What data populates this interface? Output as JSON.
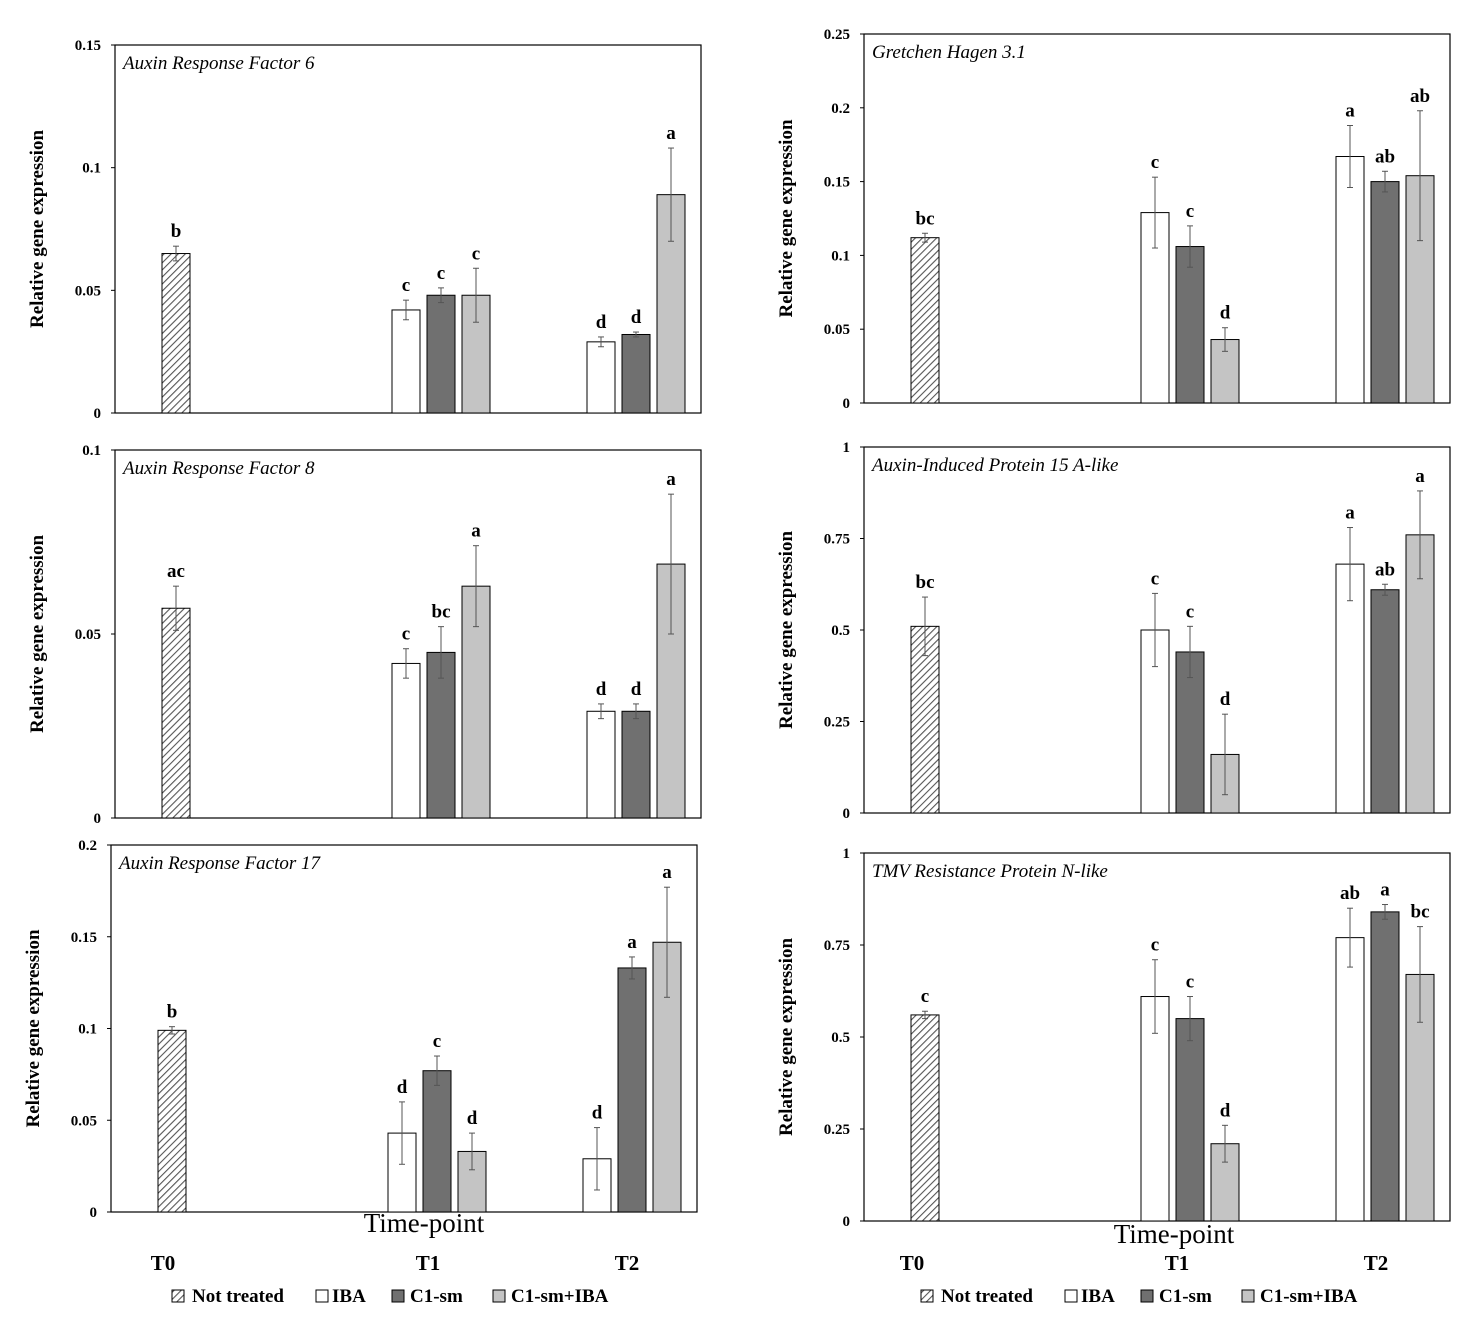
{
  "chart_data": [
    {
      "type": "bar",
      "title": "Auxin Response Factor 6",
      "ylabel": "Relative gene expression",
      "ylim": [
        0,
        0.15
      ],
      "yticks": [
        "0",
        "0.05",
        "0.1",
        "0.15"
      ],
      "categories": [
        "T0",
        "T1",
        "T2"
      ],
      "series": [
        {
          "name": "Not treated",
          "values": [
            0.065,
            null,
            null
          ],
          "errors": [
            0.003,
            null,
            null
          ],
          "letters": [
            "b",
            null,
            null
          ]
        },
        {
          "name": "IBA",
          "values": [
            null,
            0.042,
            0.029
          ],
          "errors": [
            null,
            0.004,
            0.002
          ],
          "letters": [
            null,
            "c",
            "d"
          ]
        },
        {
          "name": "C1-sm",
          "values": [
            null,
            0.048,
            0.032
          ],
          "errors": [
            null,
            0.003,
            0.001
          ],
          "letters": [
            null,
            "c",
            "d"
          ]
        },
        {
          "name": "C1-sm+IBA",
          "values": [
            null,
            0.048,
            0.089
          ],
          "errors": [
            null,
            0.011,
            0.019
          ],
          "letters": [
            null,
            "c",
            "a"
          ]
        }
      ]
    },
    {
      "type": "bar",
      "title": "Auxin Response Factor 8",
      "ylabel": "Relative gene expression",
      "ylim": [
        0,
        0.1
      ],
      "yticks": [
        "0",
        "0.05",
        "0.1"
      ],
      "categories": [
        "T0",
        "T1",
        "T2"
      ],
      "series": [
        {
          "name": "Not treated",
          "values": [
            0.057,
            null,
            null
          ],
          "errors": [
            0.006,
            null,
            null
          ],
          "letters": [
            "ac",
            null,
            null
          ]
        },
        {
          "name": "IBA",
          "values": [
            null,
            0.042,
            0.029
          ],
          "errors": [
            null,
            0.004,
            0.002
          ],
          "letters": [
            null,
            "c",
            "d"
          ]
        },
        {
          "name": "C1-sm",
          "values": [
            null,
            0.045,
            0.029
          ],
          "errors": [
            null,
            0.007,
            0.002
          ],
          "letters": [
            null,
            "bc",
            "d"
          ]
        },
        {
          "name": "C1-sm+IBA",
          "values": [
            null,
            0.063,
            0.069
          ],
          "errors": [
            null,
            0.011,
            0.019
          ],
          "letters": [
            null,
            "a",
            "a"
          ]
        }
      ]
    },
    {
      "type": "bar",
      "title": "Auxin Response Factor 17",
      "ylabel": "Relative gene expression",
      "ylim": [
        0,
        0.2
      ],
      "yticks": [
        "0",
        "0.05",
        "0.1",
        "0.15",
        "0.2"
      ],
      "categories": [
        "T0",
        "T1",
        "T2"
      ],
      "series": [
        {
          "name": "Not treated",
          "values": [
            0.099,
            null,
            null
          ],
          "errors": [
            0.002,
            null,
            null
          ],
          "letters": [
            "b",
            null,
            null
          ]
        },
        {
          "name": "IBA",
          "values": [
            null,
            0.043,
            0.029
          ],
          "errors": [
            null,
            0.017,
            0.017
          ],
          "letters": [
            null,
            "d",
            "d"
          ]
        },
        {
          "name": "C1-sm",
          "values": [
            null,
            0.077,
            0.133
          ],
          "errors": [
            null,
            0.008,
            0.006
          ],
          "letters": [
            null,
            "c",
            "a"
          ]
        },
        {
          "name": "C1-sm+IBA",
          "values": [
            null,
            0.033,
            0.147
          ],
          "errors": [
            null,
            0.01,
            0.03
          ],
          "letters": [
            null,
            "d",
            "a"
          ]
        }
      ]
    },
    {
      "type": "bar",
      "title": "Gretchen Hagen 3.1",
      "ylabel": "Relative gene expression",
      "ylim": [
        0,
        0.25
      ],
      "yticks": [
        "0",
        "0.05",
        "0.1",
        "0.15",
        "0.2",
        "0.25"
      ],
      "categories": [
        "T0",
        "T1",
        "T2"
      ],
      "series": [
        {
          "name": "Not treated",
          "values": [
            0.112,
            null,
            null
          ],
          "errors": [
            0.003,
            null,
            null
          ],
          "letters": [
            "bc",
            null,
            null
          ]
        },
        {
          "name": "IBA",
          "values": [
            null,
            0.129,
            0.167
          ],
          "errors": [
            null,
            0.024,
            0.021
          ],
          "letters": [
            null,
            "c",
            "a"
          ]
        },
        {
          "name": "C1-sm",
          "values": [
            null,
            0.106,
            0.15
          ],
          "errors": [
            null,
            0.014,
            0.007
          ],
          "letters": [
            null,
            "c",
            "ab"
          ]
        },
        {
          "name": "C1-sm+IBA",
          "values": [
            null,
            0.043,
            0.154
          ],
          "errors": [
            null,
            0.008,
            0.044
          ],
          "letters": [
            null,
            "d",
            "ab"
          ]
        }
      ]
    },
    {
      "type": "bar",
      "title": "Auxin-Induced Protein 15 A-like",
      "ylabel": "Relative gene expression",
      "ylim": [
        0,
        1
      ],
      "yticks": [
        "0",
        "0.25",
        "0.5",
        "0.75",
        "1"
      ],
      "categories": [
        "T0",
        "T1",
        "T2"
      ],
      "series": [
        {
          "name": "Not treated",
          "values": [
            0.51,
            null,
            null
          ],
          "errors": [
            0.08,
            null,
            null
          ],
          "letters": [
            "bc",
            null,
            null
          ]
        },
        {
          "name": "IBA",
          "values": [
            null,
            0.5,
            0.68
          ],
          "errors": [
            null,
            0.1,
            0.1
          ],
          "letters": [
            null,
            "c",
            "a"
          ]
        },
        {
          "name": "C1-sm",
          "values": [
            null,
            0.44,
            0.61
          ],
          "errors": [
            null,
            0.07,
            0.015
          ],
          "letters": [
            null,
            "c",
            "ab"
          ]
        },
        {
          "name": "C1-sm+IBA",
          "values": [
            null,
            0.16,
            0.76
          ],
          "errors": [
            null,
            0.11,
            0.12
          ],
          "letters": [
            null,
            "d",
            "a"
          ]
        }
      ]
    },
    {
      "type": "bar",
      "title": "TMV Resistance Protein N-like",
      "ylabel": "Relative gene expression",
      "ylim": [
        0,
        1
      ],
      "yticks": [
        "0",
        "0.25",
        "0.5",
        "0.75",
        "1"
      ],
      "categories": [
        "T0",
        "T1",
        "T2"
      ],
      "series": [
        {
          "name": "Not treated",
          "values": [
            0.56,
            null,
            null
          ],
          "errors": [
            0.01,
            null,
            null
          ],
          "letters": [
            "c",
            null,
            null
          ]
        },
        {
          "name": "IBA",
          "values": [
            null,
            0.61,
            0.77
          ],
          "errors": [
            null,
            0.1,
            0.08
          ],
          "letters": [
            null,
            "c",
            "ab"
          ]
        },
        {
          "name": "C1-sm",
          "values": [
            null,
            0.55,
            0.84
          ],
          "errors": [
            null,
            0.06,
            0.02
          ],
          "letters": [
            null,
            "c",
            "a"
          ]
        },
        {
          "name": "C1-sm+IBA",
          "values": [
            null,
            0.21,
            0.67
          ],
          "errors": [
            null,
            0.05,
            0.13
          ],
          "letters": [
            null,
            "d",
            "bc"
          ]
        }
      ]
    }
  ],
  "axis": {
    "xlabel": "Time-point",
    "timepoints": [
      "T0",
      "T1",
      "T2"
    ]
  },
  "legend": {
    "items": [
      "Not treated",
      "IBA",
      "C1-sm",
      "C1-sm+IBA"
    ]
  },
  "colors": {
    "not_treated": "#9a9a9a",
    "iba": "#ffffff",
    "c1sm": "#707070",
    "c1sm_iba": "#c4c4c4"
  }
}
